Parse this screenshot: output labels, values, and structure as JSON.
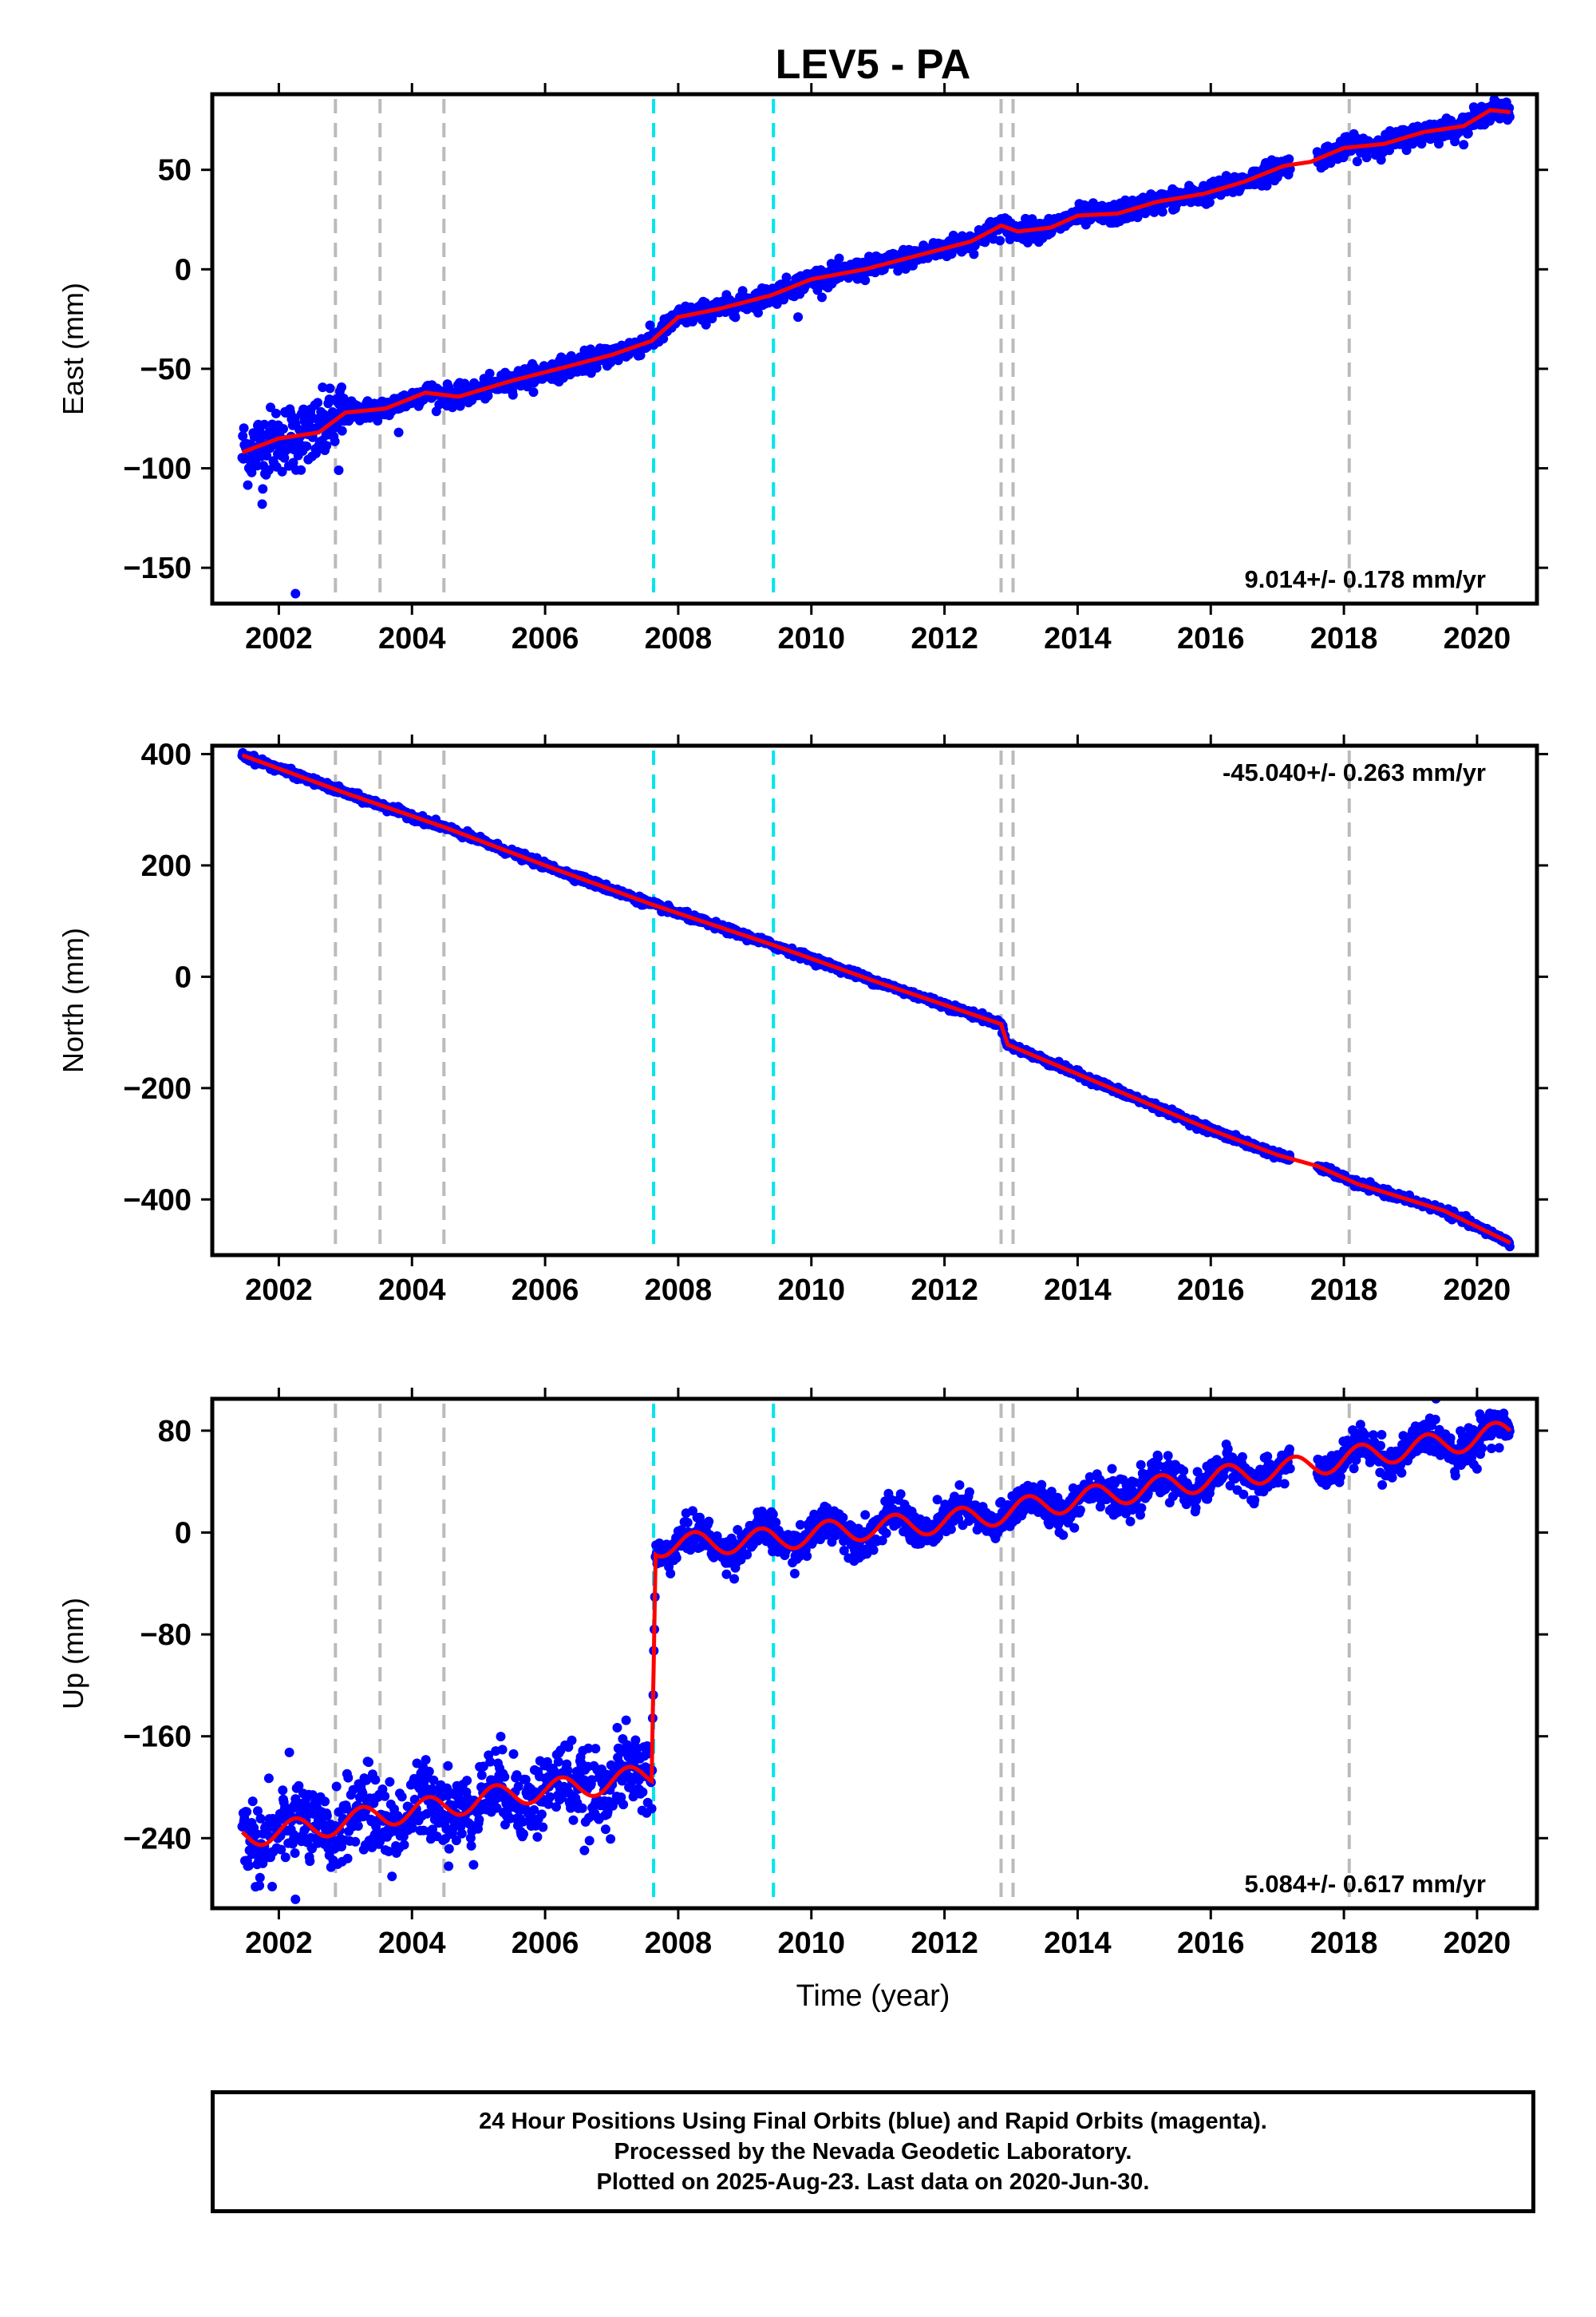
{
  "title": "LEV5 - PA",
  "xlabel": "Time (year)",
  "colors": {
    "data": "#0000ff",
    "model": "#ff0000",
    "offset_gray": "#bbbbbb",
    "offset_cyan": "#00e5ee",
    "frame": "#000000"
  },
  "offsets": {
    "gray": [
      2002.85,
      2003.52,
      2004.48,
      2012.85,
      2013.03,
      2018.08
    ],
    "cyan": [
      2007.63,
      2009.43
    ]
  },
  "chart_data": [
    {
      "type": "scatter",
      "component": "east",
      "ylabel": "East (mm)",
      "rate_label": "9.014+/- 0.178 mm/yr",
      "rate_position": "bottom-right",
      "xlim": [
        2001.0,
        2020.9
      ],
      "ylim": [
        -168,
        88
      ],
      "xticks": [
        "2002",
        "2004",
        "2006",
        "2008",
        "2010",
        "2012",
        "2014",
        "2016",
        "2018",
        "2020"
      ],
      "yticks": [
        "50",
        "0",
        "−50",
        "−100",
        "−150"
      ],
      "ytick_values": [
        50,
        0,
        -50,
        -100,
        -150
      ],
      "x_start": 2001.45,
      "x_end": 2020.5,
      "x_break": 2007.63,
      "series": [
        {
          "x": [
            2001.45,
            2002.0,
            2002.6,
            2003.0,
            2003.6,
            2004.2,
            2004.7,
            2005.5,
            2006.2,
            2007.0,
            2007.6,
            2008.0,
            2008.6,
            2009.4,
            2010.0,
            2010.8,
            2011.6,
            2012.4,
            2012.85,
            2013.1,
            2013.6,
            2014.0,
            2014.6,
            2015.2,
            2015.9,
            2016.5,
            2017.1,
            2017.5,
            2018.0,
            2018.6,
            2019.2,
            2019.8,
            2020.2,
            2020.5
          ],
          "y": [
            -92,
            -85,
            -82,
            -72,
            -70,
            -62,
            -64,
            -56,
            -50,
            -43,
            -36,
            -24,
            -20,
            -13,
            -5,
            0,
            7,
            14,
            22,
            19,
            21,
            27,
            28,
            34,
            38,
            44,
            52,
            54,
            61,
            63,
            69,
            72,
            80,
            79
          ]
        }
      ],
      "outliers": [
        {
          "x": 2001.75,
          "y": -118
        },
        {
          "x": 2002.25,
          "y": -163
        },
        {
          "x": 2002.9,
          "y": -101
        },
        {
          "x": 2003.8,
          "y": -82
        },
        {
          "x": 2002.5,
          "y": -94
        },
        {
          "x": 2009.8,
          "y": -24
        }
      ],
      "gap": [
        2017.2,
        2017.6
      ],
      "scatter_sigma": 2.5,
      "noise_early": 6,
      "noise_early_until": 2003.0,
      "seasonal_amp": 0
    },
    {
      "type": "scatter",
      "component": "north",
      "ylabel": "North (mm)",
      "rate_label": "-45.040+/- 0.263 mm/yr",
      "rate_position": "top-right",
      "xlim": [
        2001.0,
        2020.9
      ],
      "ylim": [
        -500,
        415
      ],
      "xticks": [
        "2002",
        "2004",
        "2006",
        "2008",
        "2010",
        "2012",
        "2014",
        "2016",
        "2018",
        "2020"
      ],
      "yticks": [
        "400",
        "200",
        "0",
        "−200",
        "−400"
      ],
      "ytick_values": [
        400,
        200,
        0,
        -200,
        -400
      ],
      "x_start": 2001.45,
      "x_end": 2020.5,
      "x_break": 2012.9,
      "series": [
        {
          "x": [
            2001.45,
            2003.0,
            2004.5,
            2006.0,
            2007.6,
            2009.4,
            2011.0,
            2012.85,
            2012.95,
            2014.5,
            2016.0,
            2017.0,
            2017.6,
            2018.2,
            2019.5,
            2020.5
          ],
          "y": [
            398,
            330,
            268,
            200,
            130,
            58,
            -10,
            -85,
            -122,
            -200,
            -275,
            -320,
            -340,
            -372,
            -420,
            -478
          ]
        }
      ],
      "outliers": [],
      "gap": [
        2017.2,
        2017.6
      ],
      "scatter_sigma": 3,
      "noise_early": 0,
      "noise_early_until": 2001.0,
      "seasonal_amp": 0
    },
    {
      "type": "scatter",
      "component": "up",
      "ylabel": "Up (mm)",
      "rate_label": "5.084+/- 0.617 mm/yr",
      "rate_position": "bottom-right",
      "xlim": [
        2001.0,
        2020.9
      ],
      "ylim": [
        -295,
        105
      ],
      "xticks": [
        "2002",
        "2004",
        "2006",
        "2008",
        "2010",
        "2012",
        "2014",
        "2016",
        "2018",
        "2020"
      ],
      "yticks": [
        "80",
        "0",
        "−80",
        "−160",
        "−240"
      ],
      "ytick_values": [
        80,
        0,
        -80,
        -160,
        -240
      ],
      "x_start": 2001.45,
      "x_end": 2020.5,
      "x_break": 2007.63,
      "series": [
        {
          "x": [
            2001.45,
            2002.5,
            2003.5,
            2004.5,
            2005.5,
            2006.5,
            2007.6,
            2007.66,
            2008.5,
            2009.5,
            2010.5,
            2011.5,
            2012.5,
            2013.5,
            2014.5,
            2015.5,
            2016.5,
            2017.2,
            2018.0,
            2019.0,
            2020.0,
            2020.5
          ],
          "y": [
            -238,
            -232,
            -222,
            -215,
            -205,
            -200,
            -190,
            -10,
            -8,
            -5,
            2,
            6,
            12,
            22,
            30,
            38,
            46,
            50,
            58,
            66,
            74,
            80
          ]
        }
      ],
      "outliers": [
        {
          "x": 2001.9,
          "y": -278
        },
        {
          "x": 2002.25,
          "y": -288
        },
        {
          "x": 2003.7,
          "y": -270
        },
        {
          "x": 2004.55,
          "y": -262
        },
        {
          "x": 2001.85,
          "y": -193
        },
        {
          "x": 2020.0,
          "y": 50
        }
      ],
      "gap": [
        2017.2,
        2017.6
      ],
      "scatter_sigma": 7,
      "noise_early": 8,
      "noise_early_until": 2007.63,
      "seasonal_amp": 9
    }
  ],
  "caption": {
    "line1": "24 Hour Positions Using Final Orbits (blue) and Rapid Orbits (magenta).",
    "line2": "Processed by the Nevada Geodetic Laboratory.",
    "line3": "Plotted on 2025-Aug-23. Last data on 2020-Jun-30."
  }
}
